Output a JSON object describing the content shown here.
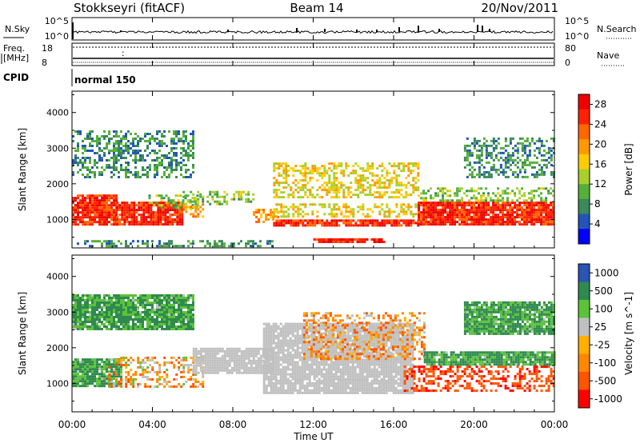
{
  "header": {
    "station": "Stokkseyri (fitACF)",
    "beam": "Beam 14",
    "date": "20/Nov/2011"
  },
  "panels": {
    "nsky": {
      "left_label": "N.Sky",
      "right_label": "N.Search",
      "left_ticks": [
        "10^5",
        "10^0"
      ],
      "right_ticks": [
        "10^5",
        "10^0"
      ]
    },
    "freq": {
      "left_label_1": "Freq.",
      "left_label_2": "[MHz]",
      "right_label": "Nave",
      "left_ticks": [
        "18",
        "8"
      ],
      "right_ticks": [
        "80",
        "0"
      ]
    },
    "cpid": {
      "label": "CPID",
      "value": "normal 150"
    }
  },
  "axes": {
    "ylabel": "Slant Range [km]",
    "xlabel": "Time UT"
  },
  "colorbars": {
    "power": {
      "label": "Power [dB]",
      "ticks": [
        "28",
        "24",
        "20",
        "16",
        "12",
        "8",
        "4"
      ],
      "colors": [
        "#0000ff",
        "#2255bb",
        "#3a8a5a",
        "#55b03a",
        "#a8cf2a",
        "#ffcc00",
        "#ff9900",
        "#ff6600",
        "#ff2200",
        "#ee0000"
      ]
    },
    "velocity": {
      "label": "Velocity [m s^-1]",
      "ticks": [
        "1000",
        "500",
        "100",
        "25",
        "-25",
        "-100",
        "-500",
        "-1000"
      ],
      "colors": [
        "#2a55b5",
        "#2f8a4f",
        "#5cc23a",
        "#c0c0c0",
        "#ffb000",
        "#ff8800",
        "#ff5500",
        "#ff0000"
      ]
    }
  },
  "chart_data": [
    {
      "type": "heatmap",
      "title": "Power",
      "xlabel": "Time UT",
      "ylabel": "Slant Range [km]",
      "xlim": [
        0,
        24
      ],
      "ylim": [
        200,
        4600
      ],
      "x_ticks": [
        "00:00",
        "04:00",
        "08:00",
        "12:00",
        "16:00",
        "20:00",
        "00:00"
      ],
      "y_ticks": [
        1000,
        2000,
        3000,
        4000
      ],
      "colorbar_label": "Power [dB]",
      "colorbar_ticks": [
        4,
        8,
        12,
        16,
        20,
        24,
        28
      ],
      "colorbar_range": [
        0,
        30
      ],
      "regions": [
        {
          "t0": 0.0,
          "t1": 2.2,
          "r0": 850,
          "r1": 1700,
          "value": 26
        },
        {
          "t0": 2.2,
          "t1": 5.5,
          "r0": 850,
          "r1": 1500,
          "value": 26
        },
        {
          "t0": 3.8,
          "t1": 6.2,
          "r0": 1300,
          "r1": 1700,
          "value": 12
        },
        {
          "t0": 5.5,
          "t1": 9.0,
          "r0": 1450,
          "r1": 1800,
          "value": 12
        },
        {
          "t0": 5.5,
          "t1": 6.5,
          "r0": 1100,
          "r1": 1450,
          "value": 20
        },
        {
          "t0": 9.0,
          "t1": 10.2,
          "r0": 950,
          "r1": 1300,
          "value": 20
        },
        {
          "t0": 10.0,
          "t1": 17.2,
          "r0": 850,
          "r1": 1000,
          "value": 26
        },
        {
          "t0": 10.0,
          "t1": 17.2,
          "r0": 1100,
          "r1": 1450,
          "value": 16
        },
        {
          "t0": 10.0,
          "t1": 17.2,
          "r0": 1600,
          "r1": 2600,
          "value": 16
        },
        {
          "t0": 12.0,
          "t1": 15.5,
          "r0": 380,
          "r1": 470,
          "value": 26
        },
        {
          "t0": 17.2,
          "t1": 24.0,
          "r0": 850,
          "r1": 1500,
          "value": 26
        },
        {
          "t0": 17.2,
          "t1": 24.0,
          "r0": 1500,
          "r1": 1900,
          "value": 12
        },
        {
          "t0": 0.0,
          "t1": 10.0,
          "r0": 250,
          "r1": 420,
          "value": 8
        },
        {
          "t0": 0.0,
          "t1": 6.0,
          "r0": 2200,
          "r1": 3500,
          "value": 8
        },
        {
          "t0": 19.5,
          "t1": 24.0,
          "r0": 2200,
          "r1": 3300,
          "value": 8
        }
      ]
    },
    {
      "type": "heatmap",
      "title": "Velocity",
      "xlabel": "Time UT",
      "ylabel": "Slant Range [km]",
      "xlim": [
        0,
        24
      ],
      "ylim": [
        200,
        4600
      ],
      "x_ticks": [
        "00:00",
        "04:00",
        "08:00",
        "12:00",
        "16:00",
        "20:00",
        "00:00"
      ],
      "y_ticks": [
        1000,
        2000,
        3000,
        4000
      ],
      "colorbar_label": "Velocity [m s^-1]",
      "colorbar_ticks": [
        1000,
        500,
        100,
        25,
        -25,
        -100,
        -500,
        -1000
      ],
      "regions": [
        {
          "t0": 0.0,
          "t1": 2.5,
          "r0": 900,
          "r1": 1700,
          "value": 300
        },
        {
          "t0": 1.8,
          "t1": 6.5,
          "r0": 900,
          "r1": 1750,
          "value": -150
        },
        {
          "t0": 6.0,
          "t1": 10.0,
          "r0": 1300,
          "r1": 2000,
          "value": 0
        },
        {
          "t0": 9.5,
          "t1": 17.0,
          "r0": 750,
          "r1": 1100,
          "value": 0
        },
        {
          "t0": 9.5,
          "t1": 17.0,
          "r0": 1100,
          "r1": 2700,
          "value": 0
        },
        {
          "t0": 11.5,
          "t1": 17.5,
          "r0": 1700,
          "r1": 3000,
          "value": -200
        },
        {
          "t0": 16.5,
          "t1": 24.0,
          "r0": 800,
          "r1": 1500,
          "value": -600
        },
        {
          "t0": 17.5,
          "t1": 24.0,
          "r0": 1500,
          "r1": 1900,
          "value": 300
        },
        {
          "t0": 0.0,
          "t1": 6.0,
          "r0": 2500,
          "r1": 3500,
          "value": 300
        },
        {
          "t0": 19.5,
          "t1": 24.0,
          "r0": 2400,
          "r1": 3300,
          "value": 300
        }
      ]
    }
  ]
}
